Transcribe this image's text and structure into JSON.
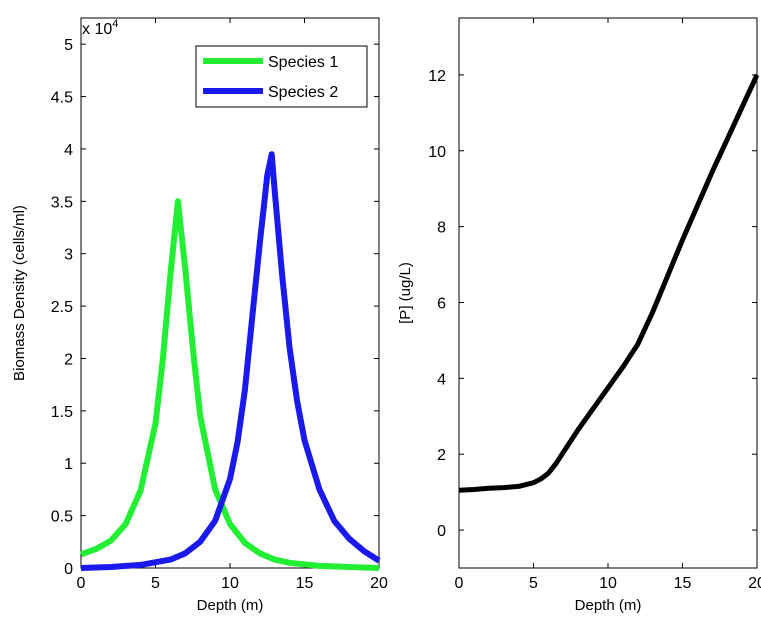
{
  "chart_data": [
    {
      "type": "line",
      "xlabel": "Depth (m)",
      "ylabel": "Biomass Density (cells/ml)",
      "y_exponent_label": "x 10",
      "y_exponent": "4",
      "xlim": [
        0,
        20
      ],
      "ylim": [
        0,
        5.25
      ],
      "xticks": [
        "0",
        "5",
        "10",
        "15",
        "20"
      ],
      "yticks": [
        "0",
        "0.5",
        "1",
        "1.5",
        "2",
        "2.5",
        "3",
        "3.5",
        "4",
        "4.5",
        "5"
      ],
      "legend_position": "top-right",
      "series": [
        {
          "name": "Species 1",
          "color": "#22ee33",
          "x": [
            0,
            1,
            2,
            3,
            4,
            5,
            5.5,
            6,
            6.5,
            7,
            7.5,
            8,
            9,
            10,
            11,
            12,
            13,
            14,
            16,
            18,
            20
          ],
          "y": [
            0.13,
            0.18,
            0.26,
            0.42,
            0.74,
            1.38,
            2.0,
            2.8,
            3.5,
            2.85,
            2.1,
            1.45,
            0.75,
            0.42,
            0.24,
            0.14,
            0.08,
            0.05,
            0.02,
            0.01,
            0.0
          ]
        },
        {
          "name": "Species 2",
          "color": "#1a1aee",
          "x": [
            0,
            2,
            4,
            6,
            7,
            8,
            9,
            10,
            10.5,
            11,
            11.5,
            12,
            12.5,
            12.8,
            13,
            13.5,
            14,
            14.5,
            15,
            16,
            17,
            18,
            19,
            20
          ],
          "y": [
            0.0,
            0.01,
            0.03,
            0.08,
            0.14,
            0.25,
            0.45,
            0.85,
            1.2,
            1.7,
            2.4,
            3.1,
            3.75,
            3.95,
            3.6,
            2.8,
            2.1,
            1.6,
            1.22,
            0.75,
            0.45,
            0.28,
            0.16,
            0.07
          ]
        }
      ]
    },
    {
      "type": "line",
      "xlabel": "Depth (m)",
      "ylabel": "[P] (ug/L)",
      "xlim": [
        0,
        20
      ],
      "ylim": [
        -1,
        13.5
      ],
      "xticks": [
        "0",
        "5",
        "10",
        "15",
        "20"
      ],
      "yticks": [
        "0",
        "2",
        "4",
        "6",
        "8",
        "10",
        "12"
      ],
      "series": [
        {
          "color": "#000000",
          "x": [
            0,
            1,
            2,
            3,
            4,
            5,
            5.5,
            6,
            6.5,
            7,
            8,
            9,
            10,
            11,
            12,
            13,
            14,
            15,
            16,
            17,
            18,
            19,
            20
          ],
          "y": [
            1.05,
            1.07,
            1.1,
            1.12,
            1.15,
            1.25,
            1.35,
            1.5,
            1.75,
            2.05,
            2.65,
            3.2,
            3.75,
            4.3,
            4.9,
            5.75,
            6.7,
            7.65,
            8.55,
            9.45,
            10.3,
            11.15,
            12.0
          ]
        }
      ]
    }
  ]
}
